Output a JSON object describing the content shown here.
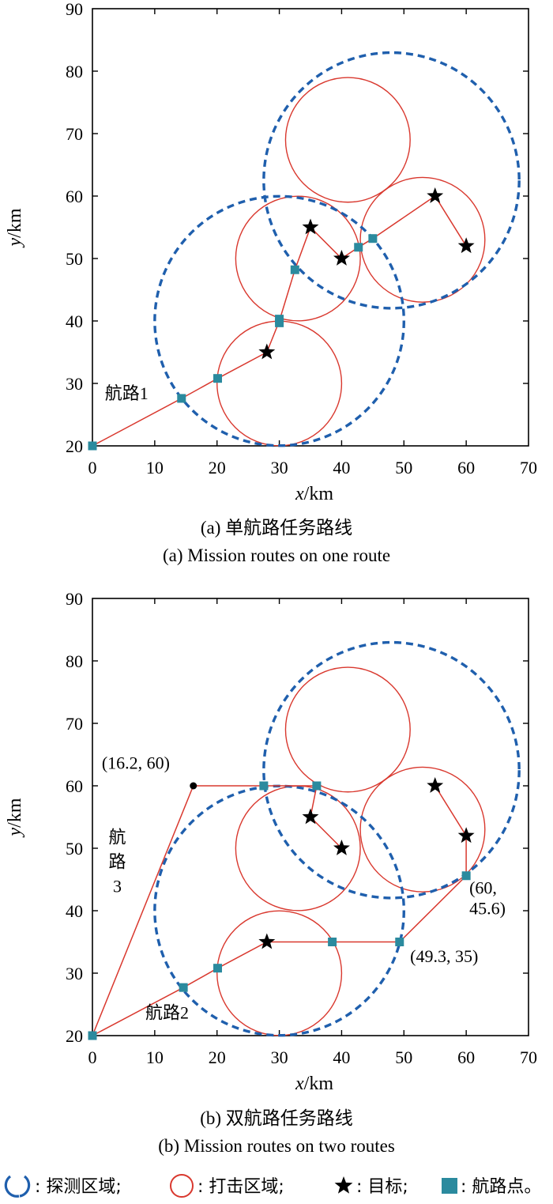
{
  "chart_data": [
    {
      "type": "line",
      "caption_cn": "(a) 单航路任务路线",
      "caption_en": "(a) Mission routes on one route",
      "xlabel_var": "x",
      "xlabel_unit": "/km",
      "ylabel_var": "y",
      "ylabel_unit": "/km",
      "xlim": [
        0,
        70
      ],
      "ylim": [
        20,
        90
      ],
      "xticks": [
        "0",
        "10",
        "20",
        "30",
        "40",
        "50",
        "60",
        "70"
      ],
      "yticks": [
        "20",
        "30",
        "40",
        "50",
        "60",
        "70",
        "80",
        "90"
      ],
      "grid": false,
      "detection_areas": [
        {
          "cx": 30,
          "cy": 40,
          "r": 20
        },
        {
          "cx": 48,
          "cy": 62.5,
          "r": 20.5
        }
      ],
      "strike_areas": [
        {
          "cx": 30,
          "cy": 30,
          "r": 10
        },
        {
          "cx": 33,
          "cy": 50,
          "r": 10
        },
        {
          "cx": 41,
          "cy": 69,
          "r": 10
        },
        {
          "cx": 53,
          "cy": 53,
          "r": 10
        }
      ],
      "targets": [
        {
          "x": 28,
          "y": 35
        },
        {
          "x": 35,
          "y": 55
        },
        {
          "x": 40,
          "y": 50
        },
        {
          "x": 55,
          "y": 60
        },
        {
          "x": 60,
          "y": 52
        }
      ],
      "waypoints": [
        {
          "x": 0,
          "y": 20
        },
        {
          "x": 14.3,
          "y": 27.6
        },
        {
          "x": 20.1,
          "y": 30.8
        },
        {
          "x": 30,
          "y": 40.3
        },
        {
          "x": 30,
          "y": 39.7
        },
        {
          "x": 32.5,
          "y": 48.2
        },
        {
          "x": 42.7,
          "y": 51.8
        },
        {
          "x": 45,
          "y": 53.2
        }
      ],
      "routes": [
        {
          "name": "航路1",
          "points": [
            [
              0,
              20
            ],
            [
              14.3,
              27.6
            ],
            [
              20.1,
              30.8
            ],
            [
              28,
              35
            ],
            [
              30,
              40
            ],
            [
              32.5,
              48.2
            ],
            [
              35,
              55
            ],
            [
              40,
              50
            ],
            [
              42.7,
              51.8
            ],
            [
              45,
              53.2
            ],
            [
              55,
              60
            ],
            [
              60,
              52
            ]
          ]
        }
      ],
      "labels": [
        {
          "text": "航路1",
          "x": 2,
          "y": 27.5
        }
      ]
    },
    {
      "type": "line",
      "caption_cn": "(b) 双航路任务路线",
      "caption_en": "(b) Mission routes on two routes",
      "xlabel_var": "x",
      "xlabel_unit": "/km",
      "ylabel_var": "y",
      "ylabel_unit": "/km",
      "xlim": [
        0,
        70
      ],
      "ylim": [
        20,
        90
      ],
      "xticks": [
        "0",
        "10",
        "20",
        "30",
        "40",
        "50",
        "60",
        "70"
      ],
      "yticks": [
        "20",
        "30",
        "40",
        "50",
        "60",
        "70",
        "80",
        "90"
      ],
      "grid": false,
      "detection_areas": [
        {
          "cx": 30,
          "cy": 40,
          "r": 20
        },
        {
          "cx": 48,
          "cy": 62.5,
          "r": 20.5
        }
      ],
      "strike_areas": [
        {
          "cx": 30,
          "cy": 30,
          "r": 10
        },
        {
          "cx": 33,
          "cy": 50,
          "r": 10
        },
        {
          "cx": 41,
          "cy": 69,
          "r": 10
        },
        {
          "cx": 53,
          "cy": 53,
          "r": 10
        }
      ],
      "targets": [
        {
          "x": 28,
          "y": 35
        },
        {
          "x": 35,
          "y": 55
        },
        {
          "x": 40,
          "y": 50
        },
        {
          "x": 55,
          "y": 60
        },
        {
          "x": 60,
          "y": 52
        }
      ],
      "waypoints": [
        {
          "x": 0,
          "y": 20
        },
        {
          "x": 14.6,
          "y": 27.7
        },
        {
          "x": 20.1,
          "y": 30.8
        },
        {
          "x": 38.5,
          "y": 35
        },
        {
          "x": 49.3,
          "y": 35
        },
        {
          "x": 60,
          "y": 45.6
        },
        {
          "x": 27.5,
          "y": 60
        },
        {
          "x": 36,
          "y": 60
        }
      ],
      "pivots": [
        {
          "x": 16.2,
          "y": 60
        }
      ],
      "routes": [
        {
          "name": "航路2",
          "points": [
            [
              0,
              20
            ],
            [
              14.6,
              27.7
            ],
            [
              20.1,
              30.8
            ],
            [
              28,
              35
            ],
            [
              38.5,
              35
            ],
            [
              49.3,
              35
            ],
            [
              60,
              45.6
            ],
            [
              60,
              52
            ],
            [
              55,
              60
            ]
          ]
        },
        {
          "name": "航路3",
          "points": [
            [
              0,
              20
            ],
            [
              16.2,
              60
            ],
            [
              27.5,
              60
            ],
            [
              36,
              60
            ],
            [
              35,
              55
            ],
            [
              40,
              50
            ]
          ]
        }
      ],
      "labels": [
        {
          "text": "(16.2, 60)",
          "x": 1.5,
          "y": 62.7
        },
        {
          "text": "(60,",
          "x": 60.5,
          "y": 42.7
        },
        {
          "text": "45.6)",
          "x": 60.5,
          "y": 39.4
        },
        {
          "text": "(49.3, 35)",
          "x": 51,
          "y": 31.8
        },
        {
          "text": "航路2",
          "x": 8.5,
          "y": 22.7
        }
      ],
      "vertical_labels": [
        {
          "lines": [
            "航",
            "路",
            "3"
          ],
          "x": 4,
          "y": 50.8,
          "step": 3.9
        }
      ]
    }
  ],
  "legend": [
    {
      "symbol": "detection",
      "text": ": 探测区域;"
    },
    {
      "symbol": "strike",
      "text": ": 打击区域;"
    },
    {
      "symbol": "star",
      "text": ": 目标;"
    },
    {
      "symbol": "square",
      "text": ": 航路点。"
    }
  ],
  "colors": {
    "detection": "#1f5fad",
    "strike": "#d9382e",
    "route": "#d9382e",
    "waypoint": "#2b8a9e",
    "axis": "#000000"
  }
}
